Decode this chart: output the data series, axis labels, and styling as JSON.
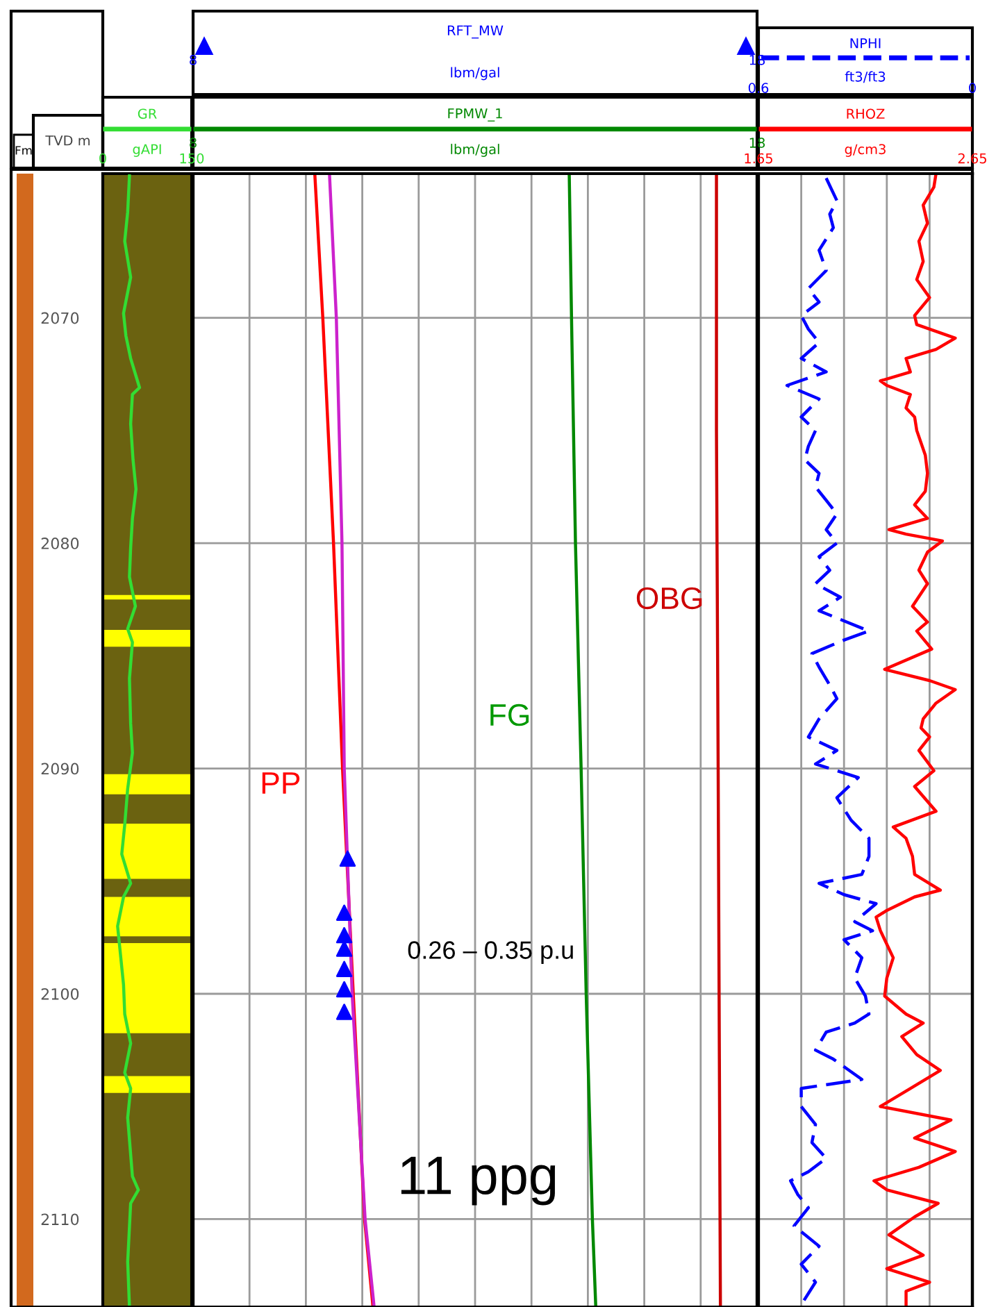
{
  "chart_data": [
    {
      "type": "line",
      "ylabel": "TVD m",
      "xlabel": "gAPI",
      "annotations": [
        "Fm"
      ],
      "xlim": [
        0,
        150
      ],
      "xticks": [
        0,
        150
      ],
      "ylim": [
        2113.9,
        2063.6
      ],
      "yticks": [
        2070,
        2080,
        2090,
        2100,
        2110
      ],
      "grid": false,
      "legend": "top",
      "bands": [
        {
          "axis": "y",
          "from": 2063.6,
          "to": 2113.9,
          "color": "#6b6210"
        },
        {
          "axis": "y",
          "from": 2082.3,
          "to": 2082.5,
          "color": "#ffff00"
        },
        {
          "axis": "y",
          "from": 2083.85,
          "to": 2084.6,
          "color": "#ffff00"
        },
        {
          "axis": "y",
          "from": 2090.25,
          "to": 2091.15,
          "color": "#ffff00"
        },
        {
          "axis": "y",
          "from": 2092.45,
          "to": 2094.9,
          "color": "#ffff00"
        },
        {
          "axis": "y",
          "from": 2095.7,
          "to": 2097.45,
          "color": "#ffff00"
        },
        {
          "axis": "y",
          "from": 2097.75,
          "to": 2101.75,
          "color": "#ffff00"
        },
        {
          "axis": "y",
          "from": 2103.65,
          "to": 2104.4,
          "color": "#ffff00"
        }
      ],
      "series": [
        {
          "name": "GR",
          "color": "#33dd33",
          "x": [
            45,
            42,
            37,
            47,
            35,
            39,
            47,
            62,
            50,
            47,
            51,
            56,
            50,
            47,
            45,
            55,
            42,
            50,
            45,
            47,
            50,
            42,
            37,
            32,
            47,
            35,
            25,
            30,
            35,
            37,
            47,
            37,
            47,
            42,
            50,
            60,
            47,
            42,
            45
          ],
          "values": [
            2063.7,
            2065.3,
            2066.6,
            2068.2,
            2069.8,
            2070.8,
            2071.8,
            2073.1,
            2073.4,
            2074.7,
            2076.3,
            2077.6,
            2078.9,
            2080.2,
            2081.5,
            2082.8,
            2083.8,
            2084.4,
            2086.0,
            2088.0,
            2089.3,
            2090.9,
            2092.5,
            2093.8,
            2095.1,
            2095.7,
            2097.0,
            2098.3,
            2099.6,
            2100.9,
            2102.2,
            2103.5,
            2104.2,
            2105.5,
            2108.1,
            2108.7,
            2109.3,
            2111.9,
            2113.9
          ]
        }
      ]
    },
    {
      "type": "line",
      "xlabel": "lbm/gal",
      "x2label": "lbm/gal",
      "xlim": [
        8,
        18
      ],
      "xticks": [
        8,
        {
          "value": 9,
          "label": null
        },
        {
          "value": 10,
          "label": null
        },
        {
          "value": 11,
          "label": null
        },
        {
          "value": 12,
          "label": null
        },
        {
          "value": 13,
          "label": null
        },
        {
          "value": 14,
          "label": null
        },
        {
          "value": 15,
          "label": null
        },
        {
          "value": 16,
          "label": null
        },
        {
          "value": 17,
          "label": null
        },
        18
      ],
      "x2lim": [
        8,
        18
      ],
      "x2ticks": [
        8,
        18
      ],
      "ylim": [
        2113.9,
        2063.6
      ],
      "yticks": [
        2070,
        2080,
        2090,
        2100,
        2110
      ],
      "grid": true,
      "tick_labels": "x",
      "legend": "top",
      "annotations": [
        "PP",
        "FG",
        "OBG",
        "0.26 – 0.35 p.u",
        "11 ppg"
      ],
      "series": [
        {
          "color": "#ff0000",
          "x": [
            10.16,
            10.3,
            10.49,
            10.65,
            10.84,
            11.04,
            11.19
          ],
          "values": [
            2063.7,
            2070,
            2080,
            2090,
            2100,
            2110,
            2113.9
          ]
        },
        {
          "color": "#cc22cc",
          "x": [
            10.42,
            10.54,
            10.64,
            10.68,
            10.82,
            11.05,
            11.21
          ],
          "values": [
            2063.7,
            2070,
            2080,
            2090,
            2100,
            2110,
            2113.9
          ]
        },
        {
          "name": "FPMW_1",
          "color": "#008800",
          "x": [
            14.67,
            14.71,
            14.78,
            14.88,
            14.97,
            15.08,
            15.14
          ],
          "values": [
            2063.7,
            2070,
            2080,
            2090,
            2100,
            2110,
            2113.9
          ]
        },
        {
          "color": "#cc0000",
          "x": [
            17.28,
            17.28,
            17.31,
            17.35
          ],
          "values": [
            2063.7,
            2075,
            2090,
            2113.9
          ]
        },
        {
          "name": "RFT_MW",
          "type": "scatter",
          "axis": "x2",
          "marker": "triangle",
          "color": "#0000ff",
          "x": [
            10.74,
            10.68,
            10.68,
            10.68,
            10.68,
            10.68,
            10.68
          ],
          "values": [
            2094.0,
            2096.4,
            2097.4,
            2098.0,
            2098.9,
            2099.8,
            2100.8
          ]
        }
      ]
    },
    {
      "type": "line",
      "xlabel": "g/cm3",
      "x2label": "ft3/ft3",
      "xlim": [
        1.65,
        2.65
      ],
      "xticks": [
        1.65,
        {
          "value": 1.85,
          "label": null
        },
        {
          "value": 2.05,
          "label": null
        },
        {
          "value": 2.25,
          "label": null
        },
        {
          "value": 2.45,
          "label": null
        },
        2.65
      ],
      "x2lim": [
        0.6,
        0
      ],
      "x2ticks": [
        0.6,
        0
      ],
      "ylim": [
        2113.9,
        2063.6
      ],
      "yticks": [
        2070,
        2080,
        2090,
        2100,
        2110
      ],
      "grid": true,
      "tick_labels": "x",
      "legend": "top",
      "series": [
        {
          "name": "NPHI",
          "axis": "x2",
          "line_style": "dashed",
          "color": "#0000ff",
          "x": [
            0.41,
            0.38,
            0.4,
            0.39,
            0.43,
            0.41,
            0.46,
            0.43,
            0.48,
            0.46,
            0.43,
            0.48,
            0.41,
            0.52,
            0.49,
            0.43,
            0.48,
            0.44,
            0.46,
            0.47,
            0.43,
            0.44,
            0.41,
            0.38,
            0.41,
            0.38,
            0.43,
            0.4,
            0.44,
            0.37,
            0.43,
            0.29,
            0.36,
            0.45,
            0.43,
            0.4,
            0.38,
            0.43,
            0.46,
            0.38,
            0.44,
            0.32,
            0.38,
            0.34,
            0.29,
            0.29,
            0.31,
            0.43,
            0.36,
            0.27,
            0.33,
            0.28,
            0.36,
            0.31,
            0.33,
            0.3,
            0.29,
            0.33,
            0.41,
            0.44,
            0.39,
            0.31,
            0.48,
            0.48,
            0.44,
            0.45,
            0.41,
            0.46,
            0.51,
            0.49,
            0.46,
            0.5,
            0.43,
            0.48,
            0.44,
            0.48
          ],
          "values": [
            2063.8,
            2064.8,
            2065.4,
            2066.0,
            2067.0,
            2067.9,
            2068.7,
            2069.3,
            2069.9,
            2070.5,
            2071.1,
            2071.8,
            2072.4,
            2073.0,
            2073.2,
            2073.6,
            2074.4,
            2075.0,
            2075.7,
            2076.3,
            2076.9,
            2077.5,
            2078.1,
            2078.7,
            2079.4,
            2080.0,
            2080.6,
            2081.2,
            2081.8,
            2082.4,
            2083.0,
            2083.9,
            2084.3,
            2084.9,
            2085.5,
            2086.3,
            2086.9,
            2087.8,
            2088.6,
            2089.2,
            2089.8,
            2090.4,
            2091.3,
            2092.3,
            2093.1,
            2093.9,
            2094.7,
            2095.1,
            2095.6,
            2096.0,
            2096.8,
            2097.2,
            2097.6,
            2098.4,
            2099.3,
            2100.1,
            2100.9,
            2101.3,
            2101.7,
            2102.5,
            2102.9,
            2103.8,
            2104.2,
            2105.0,
            2105.8,
            2106.6,
            2107.3,
            2107.9,
            2108.3,
            2108.9,
            2109.5,
            2110.3,
            2111.2,
            2112.0,
            2112.8,
            2113.8
          ]
        },
        {
          "name": "RHOZ",
          "color": "#ff0000",
          "x": [
            2.48,
            2.47,
            2.42,
            2.44,
            2.4,
            2.42,
            2.39,
            2.45,
            2.38,
            2.39,
            2.57,
            2.48,
            2.34,
            2.36,
            2.22,
            2.25,
            2.36,
            2.34,
            2.38,
            2.39,
            2.43,
            2.44,
            2.43,
            2.38,
            2.44,
            2.26,
            2.34,
            2.51,
            2.44,
            2.4,
            2.44,
            2.37,
            2.44,
            2.39,
            2.46,
            2.24,
            2.45,
            2.57,
            2.48,
            2.42,
            2.41,
            2.45,
            2.4,
            2.47,
            2.38,
            2.48,
            2.28,
            2.34,
            2.37,
            2.38,
            2.5,
            2.38,
            2.25,
            2.2,
            2.22,
            2.28,
            2.25,
            2.24,
            2.34,
            2.42,
            2.32,
            2.39,
            2.5,
            2.36,
            2.22,
            2.55,
            2.38,
            2.57,
            2.4,
            2.19,
            2.25,
            2.49,
            2.38,
            2.26,
            2.42,
            2.25,
            2.45,
            2.34,
            2.34
          ],
          "values": [
            2063.6,
            2064.2,
            2065.0,
            2065.8,
            2066.6,
            2067.5,
            2068.3,
            2069.1,
            2069.9,
            2070.3,
            2070.9,
            2071.4,
            2071.8,
            2072.4,
            2072.8,
            2073.0,
            2073.4,
            2074.0,
            2074.4,
            2075.0,
            2076.1,
            2076.9,
            2077.7,
            2078.3,
            2078.9,
            2079.4,
            2079.6,
            2079.9,
            2080.4,
            2081.2,
            2081.8,
            2082.8,
            2083.5,
            2083.9,
            2084.7,
            2085.6,
            2086.1,
            2086.5,
            2087.1,
            2087.8,
            2088.2,
            2088.6,
            2089.2,
            2090.1,
            2090.8,
            2091.9,
            2092.6,
            2093.1,
            2093.9,
            2094.7,
            2095.4,
            2095.7,
            2096.3,
            2096.6,
            2097.2,
            2098.4,
            2099.3,
            2100.1,
            2100.9,
            2101.3,
            2101.9,
            2102.7,
            2103.4,
            2104.2,
            2105.0,
            2105.6,
            2106.4,
            2107.0,
            2107.7,
            2108.3,
            2108.7,
            2109.3,
            2109.9,
            2110.7,
            2111.6,
            2112.2,
            2112.8,
            2113.2,
            2113.9
          ]
        }
      ]
    }
  ]
}
